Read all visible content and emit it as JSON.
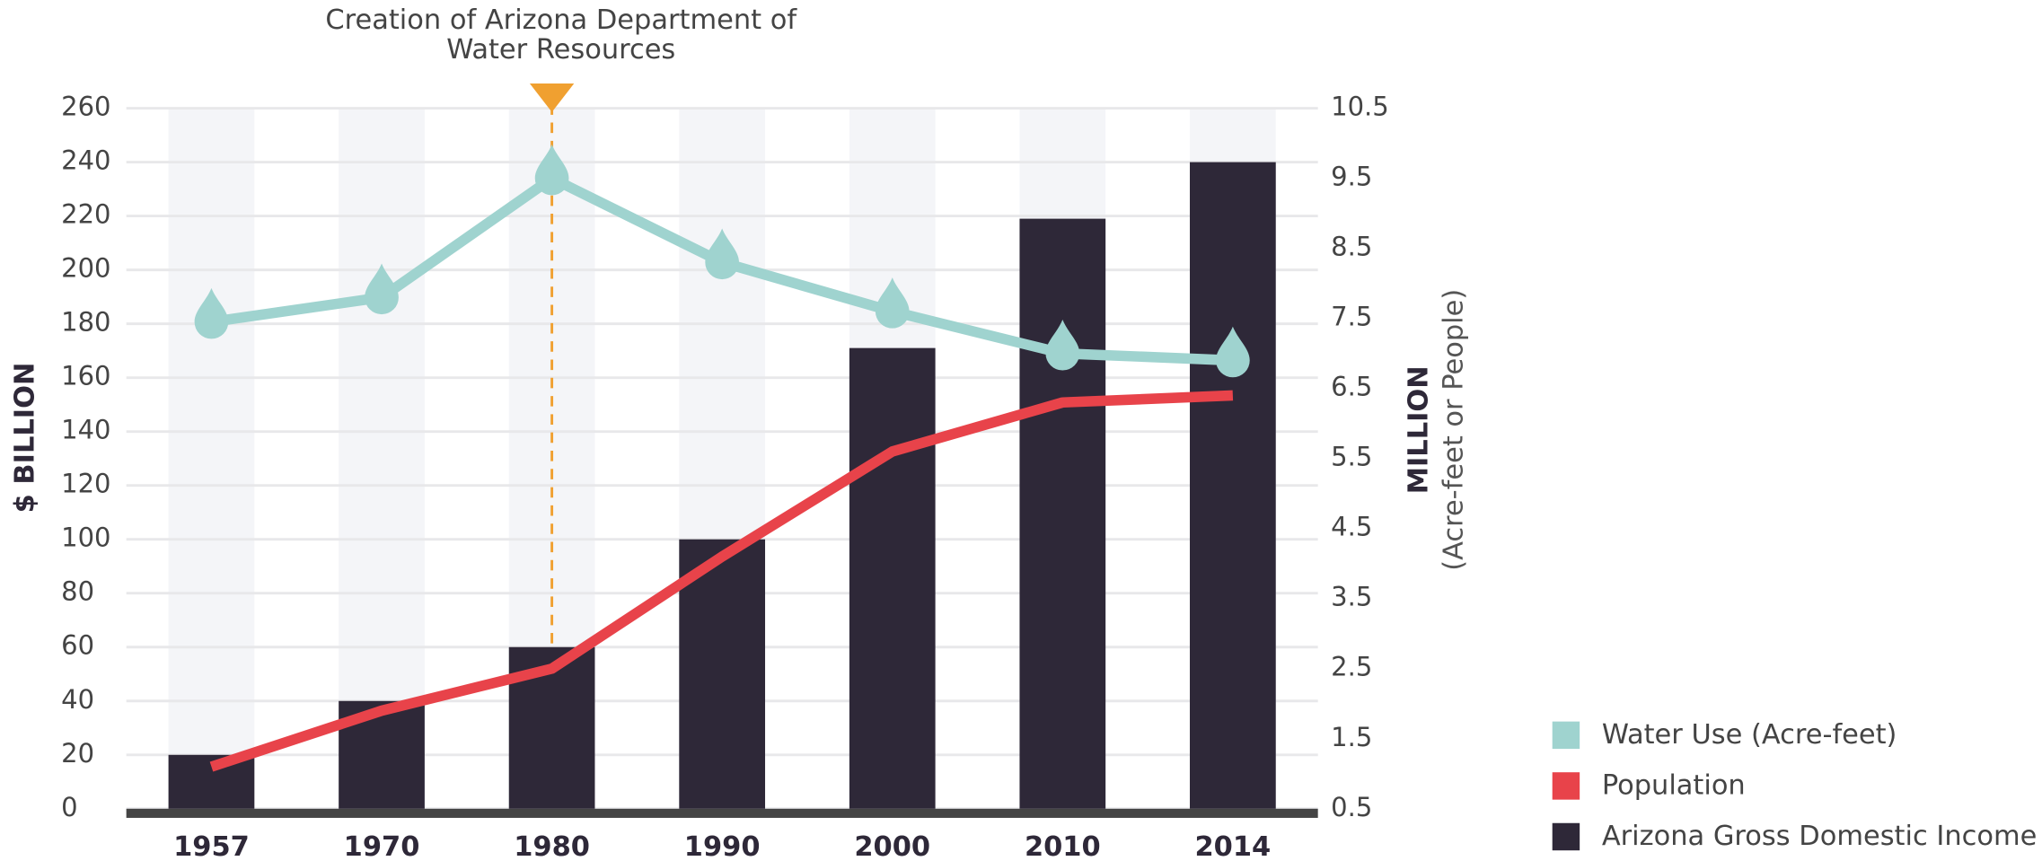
{
  "chart_data": {
    "type": "combo",
    "categories": [
      "1957",
      "1970",
      "1980",
      "1990",
      "2000",
      "2010",
      "2014"
    ],
    "series": [
      {
        "name": "Water Use (Acre-feet)",
        "type": "line",
        "axis": "y2",
        "color": "#9fd3cf",
        "values": [
          7.45,
          7.8,
          9.5,
          8.3,
          7.6,
          7.0,
          6.9
        ]
      },
      {
        "name": "Population",
        "type": "line",
        "axis": "y2",
        "color": "#e8434a",
        "values": [
          1.1,
          1.9,
          2.5,
          4.1,
          5.6,
          6.3,
          6.4
        ]
      },
      {
        "name": "Arizona Gross Domestic Income",
        "type": "bar",
        "color": "#2e2838",
        "values": [
          20,
          40,
          60,
          100,
          171,
          219,
          240
        ]
      }
    ],
    "ylim": [
      0,
      260
    ],
    "yticks": [
      0,
      20,
      40,
      60,
      80,
      100,
      120,
      140,
      160,
      180,
      200,
      220,
      240,
      260
    ],
    "y2lim": [
      0.5,
      10.5
    ],
    "y2ticks": [
      0.5,
      1.5,
      2.5,
      3.5,
      4.5,
      5.5,
      6.5,
      7.5,
      8.5,
      9.5,
      10.5
    ],
    "ylabel": "$ BILLION",
    "y2label": [
      "MILLION",
      "(Acre-feet or People)"
    ],
    "annotation": {
      "x": "1980",
      "text": [
        "Creation of Arizona Department of",
        "Water Resources"
      ],
      "color": "#f0a030"
    },
    "grid": true,
    "legend": "lower right"
  }
}
